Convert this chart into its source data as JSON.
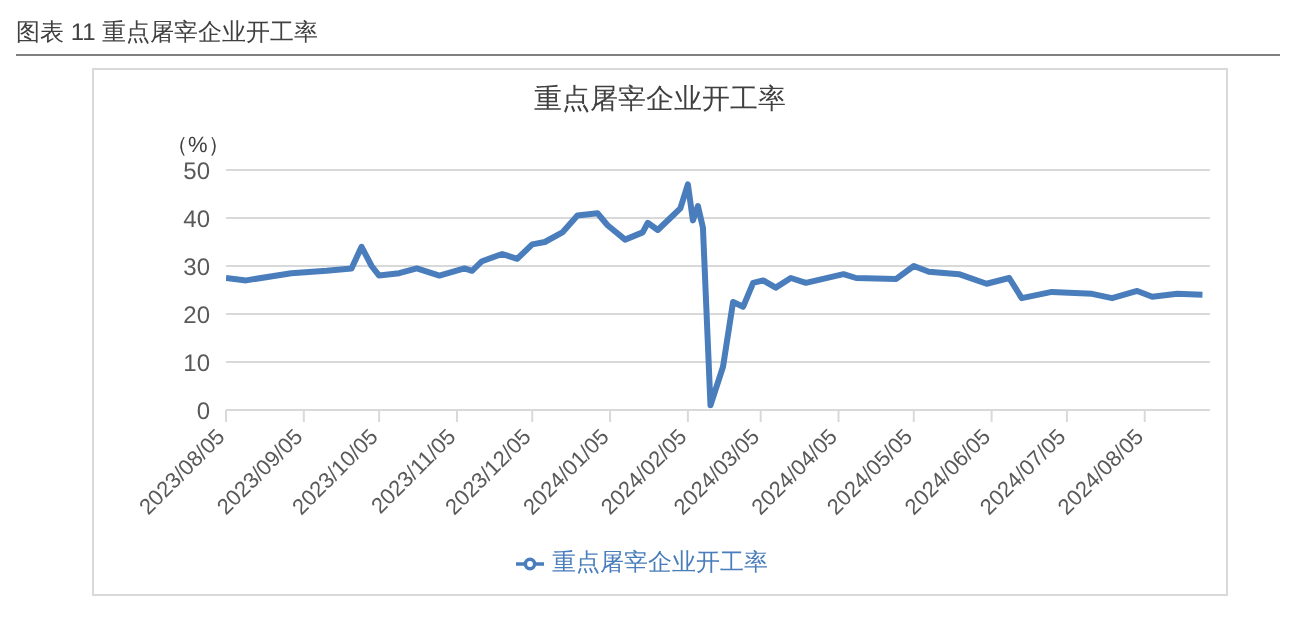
{
  "chart_data": {
    "type": "line",
    "title": "重点屠宰企业开工率",
    "ylabel": "（%）",
    "annotations": [
      "图表 11  重点屠宰企业开工率"
    ],
    "x": [
      "2023-08-05",
      "2023-08-13",
      "2023-08-31",
      "2023-09-14",
      "2023-09-24",
      "2023-09-28",
      "2023-10-02",
      "2023-10-05",
      "2023-10-13",
      "2023-10-20",
      "2023-10-29",
      "2023-11-08",
      "2023-11-11",
      "2023-11-15",
      "2023-11-23",
      "2023-11-29",
      "2023-12-05",
      "2023-12-10",
      "2023-12-17",
      "2023-12-23",
      "2023-12-31",
      "2024-01-04",
      "2024-01-11",
      "2024-01-18",
      "2024-01-20",
      "2024-01-24",
      "2024-01-29",
      "2024-02-02",
      "2024-02-05",
      "2024-02-07",
      "2024-02-09",
      "2024-02-11",
      "2024-02-14",
      "2024-02-19",
      "2024-02-23",
      "2024-02-27",
      "2024-03-02",
      "2024-03-06",
      "2024-03-11",
      "2024-03-17",
      "2024-03-23",
      "2024-04-07",
      "2024-04-12",
      "2024-04-28",
      "2024-05-05",
      "2024-05-11",
      "2024-05-23",
      "2024-06-03",
      "2024-06-12",
      "2024-06-17",
      "2024-06-29",
      "2024-07-15",
      "2024-07-23",
      "2024-08-02",
      "2024-08-08",
      "2024-08-18",
      "2024-08-28"
    ],
    "series": [
      {
        "name": "重点屠宰企业开工率",
        "color": "#4a7dbb",
        "values": [
          27.5,
          27,
          28.5,
          29,
          29.5,
          34,
          30,
          28,
          28.5,
          29.5,
          28,
          29.5,
          29,
          31,
          32.5,
          31.5,
          34.5,
          35,
          37,
          40.5,
          41,
          38.5,
          35.5,
          37,
          39,
          37.5,
          40,
          42,
          47,
          39.5,
          42.5,
          38,
          1,
          9,
          22.5,
          21.5,
          26.5,
          27,
          25.5,
          27.5,
          26.5,
          28.3,
          27.5,
          27.3,
          30,
          28.8,
          28.3,
          26.3,
          27.5,
          23.3,
          24.6,
          24.2,
          23.3,
          24.8,
          23.6,
          24.2,
          24
        ]
      }
    ],
    "xlim": [
      "2023-08-05",
      "2024-08-31"
    ],
    "xticks": [
      {
        "value": "2023-08-05",
        "label": "2023/08/05"
      },
      {
        "value": "2023-09-05",
        "label": "2023/09/05"
      },
      {
        "value": "2023-10-05",
        "label": "2023/10/05"
      },
      {
        "value": "2023-11-05",
        "label": "2023/11/05"
      },
      {
        "value": "2023-12-05",
        "label": "2023/12/05"
      },
      {
        "value": "2024-01-05",
        "label": "2024/01/05"
      },
      {
        "value": "2024-02-05",
        "label": "2024/02/05"
      },
      {
        "value": "2024-03-05",
        "label": "2024/03/05"
      },
      {
        "value": "2024-04-05",
        "label": "2024/04/05"
      },
      {
        "value": "2024-05-05",
        "label": "2024/05/05"
      },
      {
        "value": "2024-06-05",
        "label": "2024/06/05"
      },
      {
        "value": "2024-07-05",
        "label": "2024/07/05"
      },
      {
        "value": "2024-08-05",
        "label": "2024/08/05"
      }
    ],
    "ylim": [
      0,
      50
    ],
    "yticks": [
      0,
      10,
      20,
      30,
      40,
      50
    ],
    "grid": "y",
    "legend": "bottom",
    "marker": "none",
    "line_style": "solid"
  }
}
